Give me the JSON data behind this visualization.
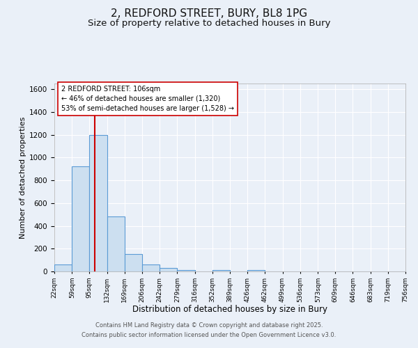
{
  "title": "2, REDFORD STREET, BURY, BL8 1PG",
  "subtitle": "Size of property relative to detached houses in Bury",
  "xlabel": "Distribution of detached houses by size in Bury",
  "ylabel": "Number of detached properties",
  "bar_values": [
    60,
    920,
    1200,
    480,
    150,
    60,
    30,
    15,
    0,
    15,
    0,
    15,
    0,
    0,
    0,
    0,
    0,
    0,
    0,
    0
  ],
  "bin_edges": [
    22,
    59,
    95,
    132,
    169,
    206,
    242,
    279,
    316,
    352,
    389,
    426,
    462,
    499,
    536,
    573,
    609,
    646,
    683,
    719,
    756
  ],
  "bar_color": "#ccdff0",
  "bar_edge_color": "#5b9bd5",
  "vline_x": 106,
  "vline_color": "#cc0000",
  "ylim": [
    0,
    1650
  ],
  "annotation_title": "2 REDFORD STREET: 106sqm",
  "annotation_line1": "← 46% of detached houses are smaller (1,320)",
  "annotation_line2": "53% of semi-detached houses are larger (1,528) →",
  "annotation_box_color": "#ffffff",
  "annotation_box_edge": "#cc0000",
  "bg_color": "#eaf0f8",
  "grid_color": "#ffffff",
  "footer_line1": "Contains HM Land Registry data © Crown copyright and database right 2025.",
  "footer_line2": "Contains public sector information licensed under the Open Government Licence v3.0.",
  "title_fontsize": 11,
  "subtitle_fontsize": 9.5,
  "yticks": [
    0,
    200,
    400,
    600,
    800,
    1000,
    1200,
    1400,
    1600
  ],
  "tick_labels": [
    "22sqm",
    "59sqm",
    "95sqm",
    "132sqm",
    "169sqm",
    "206sqm",
    "242sqm",
    "279sqm",
    "316sqm",
    "352sqm",
    "389sqm",
    "426sqm",
    "462sqm",
    "499sqm",
    "536sqm",
    "573sqm",
    "609sqm",
    "646sqm",
    "683sqm",
    "719sqm",
    "756sqm"
  ]
}
